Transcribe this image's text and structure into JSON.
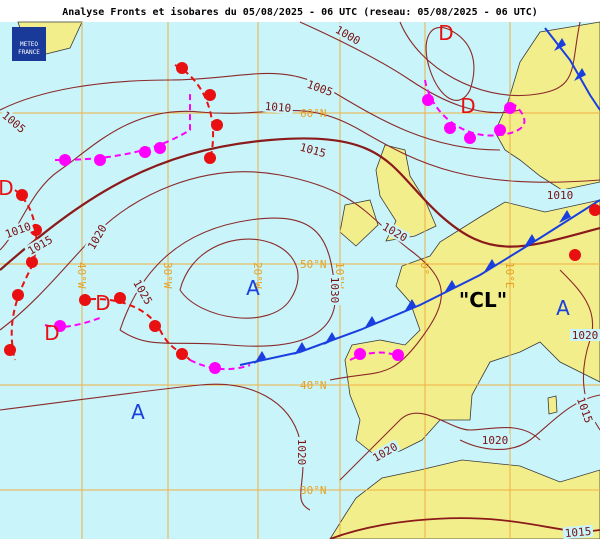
{
  "header": {
    "title": "Analyse Fronts et isobares du 05/08/2025 - 06 UTC (reseau: 05/08/2025 - 06 UTC)"
  },
  "logo": {
    "line1": "METEO",
    "line2": "FRANCE"
  },
  "graticule": {
    "lat_labels": [
      "60°N",
      "50°N",
      "40°N",
      "30°N"
    ],
    "lon_labels": [
      "40°W",
      "30°W",
      "20°W",
      "10°W",
      "0°",
      "10°E"
    ]
  },
  "isobar_labels": [
    1005,
    1010,
    1015,
    1020,
    1025,
    1030,
    1020,
    1015,
    1010,
    1005,
    1000,
    1010,
    1020,
    1015,
    1020,
    1020,
    1020,
    1015
  ],
  "centers": [
    "D",
    "D",
    "D",
    "D",
    "D",
    "A",
    "A",
    "A",
    "\"CL\""
  ]
}
